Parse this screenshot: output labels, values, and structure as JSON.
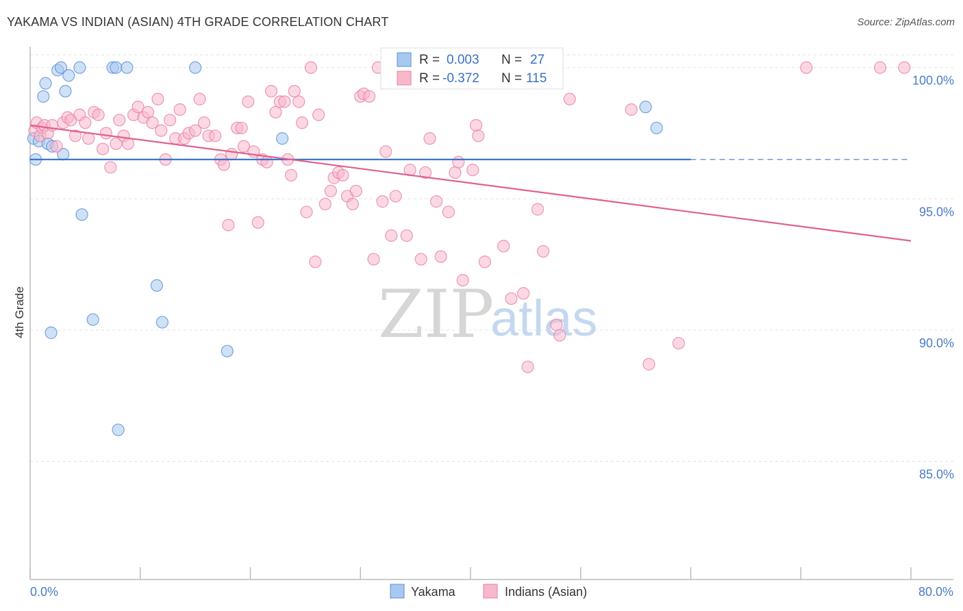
{
  "title": "YAKAMA VS INDIAN (ASIAN) 4TH GRADE CORRELATION CHART",
  "source": "Source: ZipAtlas.com",
  "watermark": {
    "zip": "ZIP",
    "atlas": "atlas"
  },
  "chart_data": {
    "type": "scatter",
    "title": "YAKAMA VS INDIAN (ASIAN) 4TH GRADE CORRELATION CHART",
    "ylabel": "4th Grade",
    "xlabel": "",
    "xlim": [
      0,
      80
    ],
    "ylim": [
      80.5,
      100.8
    ],
    "x_tick_labels": [
      "0.0%",
      "80.0%"
    ],
    "y_ticks": [
      85,
      90,
      95,
      100
    ],
    "y_tick_labels": [
      "85.0%",
      "90.0%",
      "95.0%",
      "100.0%"
    ],
    "grid": true,
    "legend_placement": "top-center",
    "series": [
      {
        "name": "Yakama",
        "color": "#a8c8f0",
        "edge_color": "#5b8fd6",
        "line_color": "#2f6fc8",
        "R": "0.003",
        "N": "27",
        "trend": {
          "x_start": 0,
          "y_start": 96.5,
          "x_end": 60,
          "y_end": 96.5,
          "dash_to": 80
        },
        "points": [
          [
            0.3,
            97.3
          ],
          [
            0.5,
            96.5
          ],
          [
            0.8,
            97.2
          ],
          [
            1.2,
            98.9
          ],
          [
            1.4,
            99.4
          ],
          [
            1.6,
            97.1
          ],
          [
            2.0,
            97.0
          ],
          [
            2.5,
            99.9
          ],
          [
            2.8,
            100.0
          ],
          [
            3.2,
            99.1
          ],
          [
            3.5,
            99.7
          ],
          [
            4.5,
            100.0
          ],
          [
            7.5,
            100.0
          ],
          [
            7.8,
            100.0
          ],
          [
            8.8,
            100.0
          ],
          [
            15.0,
            100.0
          ],
          [
            3.0,
            96.7
          ],
          [
            4.7,
            94.4
          ],
          [
            5.7,
            90.4
          ],
          [
            1.9,
            89.9
          ],
          [
            11.5,
            91.7
          ],
          [
            12.0,
            90.3
          ],
          [
            17.9,
            89.2
          ],
          [
            8.0,
            86.2
          ],
          [
            22.9,
            97.3
          ],
          [
            55.9,
            98.5
          ],
          [
            56.9,
            97.7
          ]
        ]
      },
      {
        "name": "Indians (Asian)",
        "color": "#f7b8cc",
        "edge_color": "#e87fa2",
        "line_color": "#e0608e",
        "R": "-0.372",
        "N": "115",
        "trend": {
          "x_start": 0,
          "y_start": 97.8,
          "x_end": 80,
          "y_end": 93.4
        },
        "points": [
          [
            0.4,
            97.6
          ],
          [
            0.6,
            97.9
          ],
          [
            0.9,
            97.4
          ],
          [
            1.1,
            97.7
          ],
          [
            1.3,
            97.8
          ],
          [
            1.6,
            97.5
          ],
          [
            2.0,
            97.8
          ],
          [
            2.4,
            97.0
          ],
          [
            3.0,
            97.9
          ],
          [
            3.4,
            98.1
          ],
          [
            3.7,
            98.0
          ],
          [
            4.1,
            97.4
          ],
          [
            4.5,
            98.2
          ],
          [
            5.0,
            97.9
          ],
          [
            5.3,
            97.3
          ],
          [
            5.8,
            98.3
          ],
          [
            6.2,
            98.2
          ],
          [
            6.6,
            96.9
          ],
          [
            6.9,
            97.5
          ],
          [
            7.3,
            96.2
          ],
          [
            7.8,
            97.1
          ],
          [
            8.1,
            98.0
          ],
          [
            8.5,
            97.4
          ],
          [
            8.9,
            97.1
          ],
          [
            9.4,
            98.2
          ],
          [
            9.8,
            98.5
          ],
          [
            10.3,
            98.1
          ],
          [
            10.7,
            98.3
          ],
          [
            11.1,
            97.9
          ],
          [
            11.6,
            98.8
          ],
          [
            11.9,
            97.6
          ],
          [
            12.3,
            96.5
          ],
          [
            12.7,
            98.0
          ],
          [
            13.2,
            97.3
          ],
          [
            13.6,
            98.4
          ],
          [
            14.0,
            97.3
          ],
          [
            14.4,
            97.5
          ],
          [
            15.0,
            97.6
          ],
          [
            15.4,
            98.8
          ],
          [
            15.8,
            97.9
          ],
          [
            16.2,
            97.4
          ],
          [
            16.8,
            97.4
          ],
          [
            17.3,
            96.5
          ],
          [
            17.6,
            96.3
          ],
          [
            18.0,
            94.0
          ],
          [
            18.3,
            96.7
          ],
          [
            18.8,
            97.7
          ],
          [
            19.2,
            97.7
          ],
          [
            19.4,
            97.0
          ],
          [
            19.8,
            98.7
          ],
          [
            20.3,
            96.8
          ],
          [
            20.7,
            94.1
          ],
          [
            21.1,
            96.5
          ],
          [
            21.5,
            96.4
          ],
          [
            21.9,
            99.1
          ],
          [
            22.3,
            98.3
          ],
          [
            22.7,
            98.7
          ],
          [
            23.1,
            98.7
          ],
          [
            23.4,
            96.5
          ],
          [
            23.7,
            95.9
          ],
          [
            24.4,
            98.7
          ],
          [
            24.7,
            97.9
          ],
          [
            25.1,
            94.5
          ],
          [
            25.5,
            100.0
          ],
          [
            26.2,
            98.2
          ],
          [
            25.9,
            92.6
          ],
          [
            26.8,
            94.8
          ],
          [
            27.3,
            95.3
          ],
          [
            27.6,
            95.8
          ],
          [
            28.0,
            96.0
          ],
          [
            28.4,
            95.9
          ],
          [
            28.8,
            95.1
          ],
          [
            29.3,
            94.8
          ],
          [
            29.6,
            95.3
          ],
          [
            30.0,
            98.9
          ],
          [
            30.3,
            99.0
          ],
          [
            30.8,
            98.9
          ],
          [
            31.2,
            92.7
          ],
          [
            31.6,
            100.0
          ],
          [
            32.0,
            94.9
          ],
          [
            32.3,
            96.8
          ],
          [
            32.8,
            93.6
          ],
          [
            33.2,
            95.1
          ],
          [
            34.2,
            93.6
          ],
          [
            34.5,
            96.1
          ],
          [
            35.5,
            92.7
          ],
          [
            35.9,
            96.0
          ],
          [
            36.3,
            97.3
          ],
          [
            36.9,
            94.9
          ],
          [
            37.3,
            92.8
          ],
          [
            38.0,
            94.5
          ],
          [
            38.6,
            96.0
          ],
          [
            38.9,
            96.4
          ],
          [
            39.3,
            91.9
          ],
          [
            40.2,
            96.1
          ],
          [
            40.5,
            97.8
          ],
          [
            40.7,
            97.4
          ],
          [
            41.3,
            92.6
          ],
          [
            43.0,
            93.2
          ],
          [
            43.7,
            91.2
          ],
          [
            44.8,
            91.4
          ],
          [
            45.7,
            100.0
          ],
          [
            46.1,
            94.6
          ],
          [
            46.6,
            93.0
          ],
          [
            47.8,
            90.2
          ],
          [
            48.1,
            89.8
          ],
          [
            45.2,
            88.6
          ],
          [
            54.6,
            98.4
          ],
          [
            56.2,
            88.7
          ],
          [
            58.9,
            89.5
          ],
          [
            70.5,
            100.0
          ],
          [
            77.2,
            100.0
          ],
          [
            79.4,
            100.0
          ],
          [
            49.0,
            98.8
          ],
          [
            24.0,
            99.1
          ]
        ]
      }
    ]
  }
}
